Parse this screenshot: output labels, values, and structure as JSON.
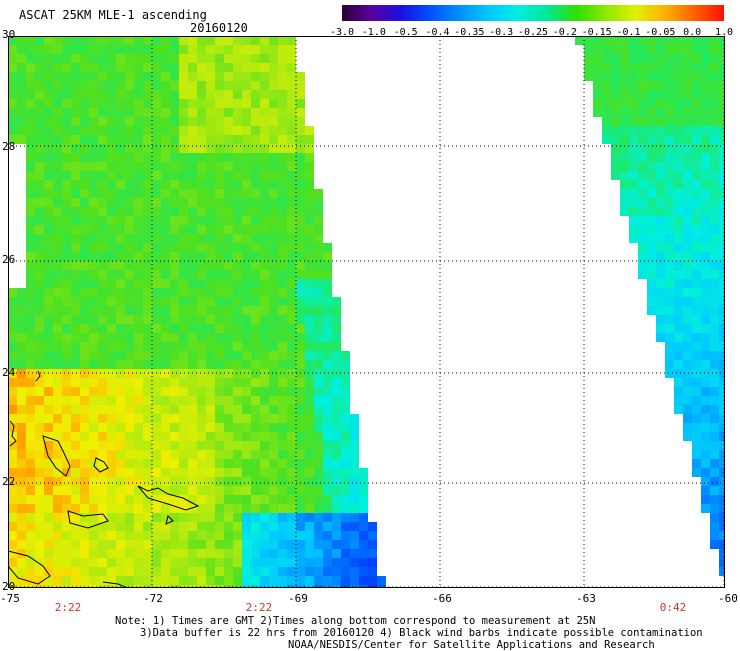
{
  "header": {
    "title": "ASCAT 25KM MLE-1 ascending",
    "date": "20160120"
  },
  "colorbar": {
    "tick_labels": [
      "-3.0",
      "-1.0",
      "-0.5",
      "-0.4",
      "-0.35",
      "-0.3",
      "-0.25",
      "-0.2",
      "-0.15",
      "-0.1",
      "-0.05",
      "0.0",
      "1.0"
    ],
    "colors": [
      "#2a0030",
      "#5a00a0",
      "#1a10e0",
      "#0050ff",
      "#0090ff",
      "#00c8ff",
      "#00f0e0",
      "#00e890",
      "#30e000",
      "#90e800",
      "#e0f000",
      "#ffb000",
      "#ff6000",
      "#ff1000"
    ]
  },
  "axes": {
    "lat_labels": [
      "30",
      "28",
      "26",
      "24",
      "22",
      "20"
    ],
    "lon_labels": [
      "-75",
      "-72",
      "-69",
      "-66",
      "-63",
      "-60"
    ]
  },
  "times": [
    "2:22",
    "2:22",
    "0:42"
  ],
  "notes": [
    "Note: 1) Times are GMT 2)Times along bottom correspond to measurement at 25N",
    "3)Data buffer is 22 hrs from 20160120 4) Black wind barbs indicate possible contamination",
    "NOAA/NESDIS/Center for Satellite Applications and Research"
  ]
}
